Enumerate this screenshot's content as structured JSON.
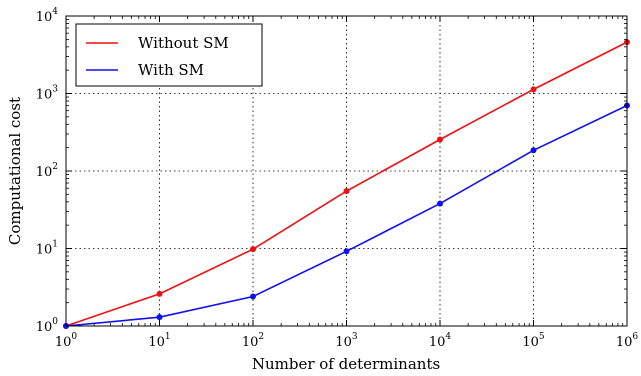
{
  "chart_data": {
    "type": "line",
    "xscale": "log",
    "yscale": "log",
    "xlabel": "Number of determinants",
    "ylabel": "Computational cost",
    "xlim": [
      1,
      1000000
    ],
    "ylim": [
      1,
      10000
    ],
    "x_tick_labels": [
      {
        "base": "10",
        "exp": "0"
      },
      {
        "base": "10",
        "exp": "1"
      },
      {
        "base": "10",
        "exp": "2"
      },
      {
        "base": "10",
        "exp": "3"
      },
      {
        "base": "10",
        "exp": "4"
      },
      {
        "base": "10",
        "exp": "5"
      },
      {
        "base": "10",
        "exp": "6"
      }
    ],
    "y_tick_labels": [
      {
        "base": "10",
        "exp": "0"
      },
      {
        "base": "10",
        "exp": "1"
      },
      {
        "base": "10",
        "exp": "2"
      },
      {
        "base": "10",
        "exp": "3"
      },
      {
        "base": "10",
        "exp": "4"
      }
    ],
    "grid": true,
    "legend_position": "top-left",
    "x": [
      1,
      10,
      100,
      1000,
      10000,
      100000,
      1000000
    ],
    "series": [
      {
        "name": "Without SM",
        "color": "#ee1111",
        "values": [
          1,
          2.6,
          9.8,
          55,
          255,
          1130,
          4600
        ]
      },
      {
        "name": "With SM",
        "color": "#1111ee",
        "values": [
          1,
          1.3,
          2.4,
          9.2,
          38,
          185,
          700
        ]
      }
    ]
  }
}
